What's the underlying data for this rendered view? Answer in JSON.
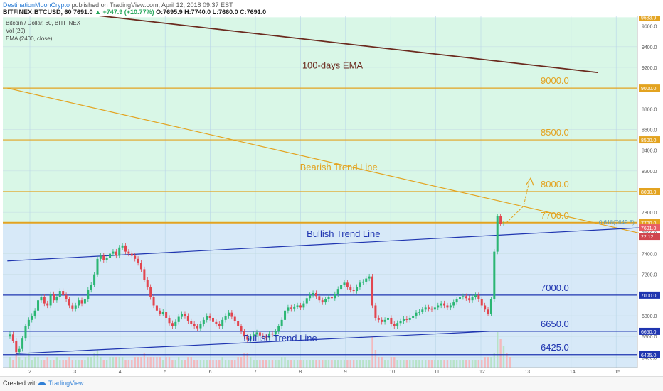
{
  "header": {
    "author": "DestinationMoonCrypto",
    "published": "published on TradingView.com, April 12, 2018 09:37 EST",
    "symbol_line": "BITFINEX:BTCUSD, 60",
    "last": "7691.0",
    "change": "+747.9 (+10.77%)",
    "ohlc": "O:7695.9  H:7740.0  L:7660.0  C:7691.0"
  },
  "legend": {
    "title": "Bitcoin / Dollar, 60, BITFINEX",
    "vol": "Vol (20)",
    "ema": "EMA (2400, close)"
  },
  "footer": {
    "created_with": "Created with",
    "brand": "TradingView"
  },
  "colors": {
    "green_zone": "#d9f7e7",
    "blue_zone": "#d7e9f8",
    "orange": "#e3a320",
    "blue": "#1f35b0",
    "ema": "#6b2a1e",
    "up": "#2bb673",
    "down": "#e2454f"
  },
  "chart_data": {
    "type": "candlestick",
    "ylim": [
      6300,
      9700
    ],
    "x_ticks": [
      "2",
      "3",
      "4",
      "5",
      "6",
      "7",
      "8",
      "9",
      "10",
      "11",
      "12",
      "13",
      "14",
      "15"
    ],
    "y_ticks": [
      "9600.0",
      "9400.0",
      "9200.0",
      "9000.0",
      "8800.0",
      "8600.0",
      "8400.0",
      "8200.0",
      "8000.0",
      "7800.0",
      "7600.0",
      "7400.0",
      "7200.0",
      "7000.0",
      "6800.0",
      "6600.0",
      "6400.0"
    ],
    "levels": [
      {
        "value": 9000,
        "label": "9000.0",
        "tag": "9000.0",
        "color": "orange"
      },
      {
        "value": 8500,
        "label": "8500.0",
        "tag": "8500.0",
        "color": "orange"
      },
      {
        "value": 8000,
        "label": "8000.0",
        "tag": "8000.0",
        "color": "orange"
      },
      {
        "value": 7700,
        "label": "7700.0",
        "tag": "7700.0",
        "color": "orange"
      },
      {
        "value": 7000,
        "label": "7000.0",
        "tag": "7000.0",
        "color": "blue"
      },
      {
        "value": 6650,
        "label": "6650.0",
        "tag": "6650.0",
        "color": "blue"
      },
      {
        "value": 6425,
        "label": "6425.0",
        "tag": "6425.0",
        "color": "blue"
      }
    ],
    "top_tag": "9683.9",
    "price_tag": "7691.0",
    "timer_tag": "22:12",
    "fib_label": "0.618(7649.8)",
    "annotations": [
      {
        "text": "100-days EMA",
        "x": 9.3,
        "y": 9190,
        "color": "ema"
      },
      {
        "text": "Bearish Trend Line",
        "x": 9.25,
        "y": 8205,
        "color": "orange"
      },
      {
        "text": "Bullish Trend Line",
        "x": 9.4,
        "y": 7560,
        "color": "blue"
      },
      {
        "text": "Bullish Trend Line",
        "x": 8.0,
        "y": 6555,
        "color": "blue"
      }
    ],
    "trend_lines": [
      {
        "name": "ema",
        "from": [
          1.5,
          9800
        ],
        "to": [
          14.6,
          9150
        ]
      },
      {
        "name": "bearish",
        "from": [
          1.5,
          9000
        ],
        "to": [
          15.5,
          7600
        ]
      },
      {
        "name": "bullish-upper",
        "from": [
          1.5,
          7330
        ],
        "to": [
          15.5,
          7650
        ]
      },
      {
        "name": "bullish-lower",
        "from": [
          1.7,
          6435
        ],
        "to": [
          12.2,
          6650
        ]
      }
    ],
    "closes": [
      6620,
      6560,
      6450,
      6480,
      6580,
      6700,
      6760,
      6800,
      6850,
      6950,
      6980,
      6920,
      6900,
      7010,
      6950,
      6980,
      7040,
      7000,
      6960,
      6900,
      6870,
      6900,
      6950,
      6920,
      6960,
      7050,
      7100,
      7200,
      7350,
      7380,
      7340,
      7360,
      7400,
      7420,
      7380,
      7460,
      7480,
      7420,
      7400,
      7380,
      7350,
      7310,
      7250,
      7150,
      7080,
      6980,
      6900,
      6850,
      6820,
      6840,
      6780,
      6730,
      6700,
      6740,
      6790,
      6820,
      6800,
      6750,
      6720,
      6700,
      6680,
      6720,
      6760,
      6800,
      6780,
      6740,
      6720,
      6700,
      6760,
      6800,
      6830,
      6790,
      6750,
      6700,
      6650,
      6600,
      6570,
      6600,
      6620,
      6640,
      6610,
      6600,
      6590,
      6630,
      6620,
      6650,
      6700,
      6760,
      6850,
      6880,
      6870,
      6890,
      6900,
      6880,
      6920,
      6970,
      7000,
      7020,
      6990,
      6950,
      6930,
      6960,
      6980,
      6970,
      7010,
      7060,
      7100,
      7120,
      7080,
      7050,
      7040,
      7080,
      7120,
      7130,
      7160,
      7180,
      6900,
      6780,
      6760,
      6740,
      6760,
      6780,
      6720,
      6700,
      6730,
      6750,
      6770,
      6760,
      6780,
      6800,
      6830,
      6840,
      6860,
      6880,
      6870,
      6860,
      6880,
      6900,
      6920,
      6900,
      6880,
      6900,
      6930,
      6960,
      6980,
      6990,
      6970,
      6950,
      6980,
      7000,
      6960,
      6900,
      6860,
      6820,
      6960,
      7420,
      7760,
      7690,
      7691
    ],
    "volume": [
      0.3,
      0.2,
      0.6,
      0.3,
      0.2,
      0.3,
      0.4,
      0.2,
      0.3,
      0.3,
      0.2,
      0.2,
      0.3,
      0.2,
      0.2,
      0.3,
      0.2,
      0.2,
      0.2,
      0.3,
      0.2,
      0.2,
      0.2,
      0.2,
      0.2,
      0.3,
      0.3,
      0.4,
      0.5,
      0.3,
      0.2,
      0.2,
      0.3,
      0.3,
      0.3,
      0.3,
      0.3,
      0.2,
      0.2,
      0.2,
      0.3,
      0.3,
      0.3,
      0.4,
      0.3,
      0.3,
      0.3,
      0.3,
      0.3,
      0.2,
      0.3,
      0.3,
      0.2,
      0.2,
      0.3,
      0.2,
      0.2,
      0.3,
      0.3,
      0.2,
      0.2,
      0.2,
      0.2,
      0.2,
      0.2,
      0.2,
      0.2,
      0.2,
      0.3,
      0.2,
      0.2,
      0.2,
      0.2,
      0.3,
      0.3,
      0.4,
      0.4,
      0.3,
      0.2,
      0.2,
      0.2,
      0.2,
      0.2,
      0.2,
      0.2,
      0.2,
      0.2,
      0.3,
      0.3,
      0.2,
      0.2,
      0.2,
      0.2,
      0.2,
      0.2,
      0.2,
      0.2,
      0.2,
      0.2,
      0.2,
      0.2,
      0.2,
      0.2,
      0.2,
      0.2,
      0.2,
      0.2,
      0.2,
      0.2,
      0.2,
      0.2,
      0.2,
      0.2,
      0.2,
      0.2,
      0.2,
      0.9,
      0.5,
      0.3,
      0.3,
      0.2,
      0.2,
      0.3,
      0.3,
      0.2,
      0.2,
      0.2,
      0.2,
      0.2,
      0.2,
      0.2,
      0.2,
      0.2,
      0.2,
      0.2,
      0.2,
      0.2,
      0.2,
      0.2,
      0.2,
      0.2,
      0.2,
      0.2,
      0.2,
      0.2,
      0.2,
      0.2,
      0.2,
      0.2,
      0.2,
      0.2,
      0.2,
      0.3,
      0.3,
      0.3,
      0.4,
      1.0,
      0.8,
      0.6,
      0.4,
      0.3
    ]
  }
}
